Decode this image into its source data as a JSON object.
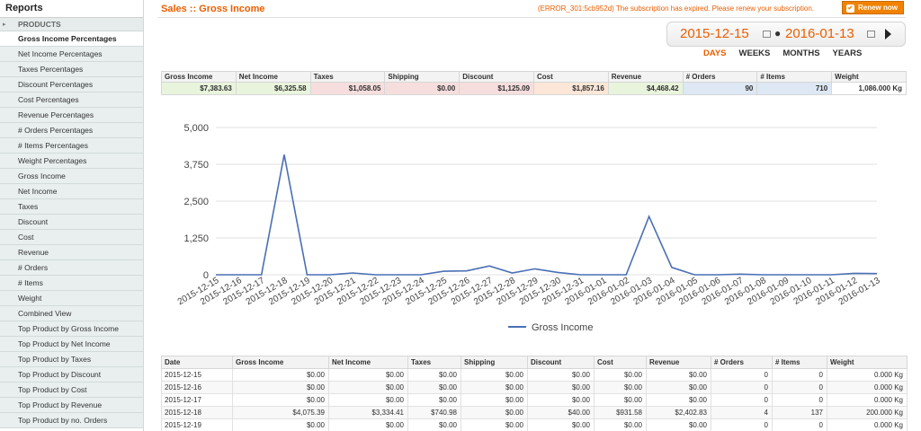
{
  "sidebar": {
    "title": "Reports",
    "group": "PRODUCTS",
    "items": [
      "Gross Income Percentages",
      "Net Income Percentages",
      "Taxes Percentages",
      "Discount Percentages",
      "Cost Percentages",
      "Revenue Percentages",
      "# Orders Percentages",
      "# Items Percentages",
      "Weight Percentages",
      "Gross Income",
      "Net Income",
      "Taxes",
      "Discount",
      "Cost",
      "Revenue",
      "# Orders",
      "# Items",
      "Weight",
      "Combined View",
      "Top Product by Gross Income",
      "Top Product by Net Income",
      "Top Product by Taxes",
      "Top Product by Discount",
      "Top Product by Cost",
      "Top Product by Revenue",
      "Top Product by no. Orders"
    ],
    "active_index": 0
  },
  "header": {
    "title": "Sales :: Gross Income",
    "error": "(ERROR_301:5cb952d) The subscription has expired. Please renew your subscription.",
    "renew_label": "Renew now"
  },
  "daterange": {
    "from": "2015-12-15",
    "to": "2016-01-13",
    "separator": "●"
  },
  "periods": {
    "items": [
      "DAYS",
      "WEEKS",
      "MONTHS",
      "YEARS"
    ],
    "active": "DAYS"
  },
  "totals": {
    "columns": [
      {
        "label": "Gross Income",
        "value": "$7,383.63",
        "bg": "#e9f4dc"
      },
      {
        "label": "Net Income",
        "value": "$6,325.58",
        "bg": "#e9f4dc"
      },
      {
        "label": "Taxes",
        "value": "$1,058.05",
        "bg": "#f7dede"
      },
      {
        "label": "Shipping",
        "value": "$0.00",
        "bg": "#f7dede"
      },
      {
        "label": "Discount",
        "value": "$1,125.09",
        "bg": "#f7dede"
      },
      {
        "label": "Cost",
        "value": "$1,857.16",
        "bg": "#fbe6d7"
      },
      {
        "label": "Revenue",
        "value": "$4,468.42",
        "bg": "#e9f4dc"
      },
      {
        "label": "# Orders",
        "value": "90",
        "bg": "#dde8f4"
      },
      {
        "label": "# Items",
        "value": "710",
        "bg": "#dde8f4"
      },
      {
        "label": "Weight",
        "value": "1,086.000 Kg",
        "bg": "#ffffff"
      }
    ]
  },
  "chart_data": {
    "type": "line",
    "title": "",
    "xlabel": "",
    "ylabel": "",
    "ylim": [
      0,
      5000
    ],
    "yticks": [
      "0",
      "1,250",
      "2,500",
      "3,750",
      "5,000"
    ],
    "yticks_values": [
      0,
      1250,
      2500,
      3750,
      5000
    ],
    "grid": true,
    "legend": "bottom",
    "categories": [
      "2015-12-15",
      "2015-12-16",
      "2015-12-17",
      "2015-12-18",
      "2015-12-19",
      "2015-12-20",
      "2015-12-21",
      "2015-12-22",
      "2015-12-23",
      "2015-12-24",
      "2015-12-25",
      "2015-12-26",
      "2015-12-27",
      "2015-12-28",
      "2015-12-29",
      "2015-12-30",
      "2015-12-31",
      "2016-01-01",
      "2016-01-02",
      "2016-01-03",
      "2016-01-04",
      "2016-01-05",
      "2016-01-06",
      "2016-01-07",
      "2016-01-08",
      "2016-01-09",
      "2016-01-10",
      "2016-01-11",
      "2016-01-12",
      "2016-01-13"
    ],
    "series": [
      {
        "name": "Gross Income",
        "color": "#4a6fb5",
        "values": [
          0,
          0,
          0,
          4075.39,
          0,
          0,
          60,
          0,
          0,
          0,
          120,
          130,
          300,
          60,
          200,
          80,
          0,
          0,
          0,
          1980,
          250,
          0,
          0,
          20,
          0,
          0,
          0,
          0,
          50,
          40
        ]
      }
    ]
  },
  "datatable": {
    "headers": [
      "Date",
      "Gross Income",
      "Net Income",
      "Taxes",
      "Shipping",
      "Discount",
      "Cost",
      "Revenue",
      "# Orders",
      "# Items",
      "Weight"
    ],
    "rows": [
      [
        "2015-12-15",
        "$0.00",
        "$0.00",
        "$0.00",
        "$0.00",
        "$0.00",
        "$0.00",
        "$0.00",
        "0",
        "0",
        "0.000 Kg"
      ],
      [
        "2015-12-16",
        "$0.00",
        "$0.00",
        "$0.00",
        "$0.00",
        "$0.00",
        "$0.00",
        "$0.00",
        "0",
        "0",
        "0.000 Kg"
      ],
      [
        "2015-12-17",
        "$0.00",
        "$0.00",
        "$0.00",
        "$0.00",
        "$0.00",
        "$0.00",
        "$0.00",
        "0",
        "0",
        "0.000 Kg"
      ],
      [
        "2015-12-18",
        "$4,075.39",
        "$3,334.41",
        "$740.98",
        "$0.00",
        "$40.00",
        "$931.58",
        "$2,402.83",
        "4",
        "137",
        "200.000 Kg"
      ],
      [
        "2015-12-19",
        "$0.00",
        "$0.00",
        "$0.00",
        "$0.00",
        "$0.00",
        "$0.00",
        "$0.00",
        "0",
        "0",
        "0.000 Kg"
      ]
    ]
  }
}
